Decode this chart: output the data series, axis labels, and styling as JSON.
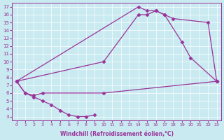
{
  "xlabel": "Windchill (Refroidissement éolien,°C)",
  "bg_color": "#c8eaf0",
  "line_color": "#993399",
  "marker": "D",
  "marker_size": 2.5,
  "xlim": [
    -0.5,
    23.5
  ],
  "ylim": [
    2.5,
    17.5
  ],
  "xticks": [
    0,
    1,
    2,
    3,
    4,
    5,
    6,
    7,
    8,
    9,
    10,
    11,
    12,
    13,
    14,
    15,
    16,
    17,
    18,
    19,
    20,
    21,
    22,
    23
  ],
  "yticks": [
    3,
    4,
    5,
    6,
    7,
    8,
    9,
    10,
    11,
    12,
    13,
    14,
    15,
    16,
    17
  ],
  "lines": [
    {
      "x": [
        0,
        14,
        15,
        16,
        17,
        18,
        22,
        23
      ],
      "y": [
        7.5,
        17.0,
        16.5,
        16.5,
        16.0,
        15.5,
        15.0,
        7.5
      ]
    },
    {
      "x": [
        0,
        10,
        14,
        15,
        16,
        17,
        19,
        20,
        23
      ],
      "y": [
        7.5,
        10.0,
        16.0,
        16.0,
        16.5,
        16.0,
        12.5,
        10.5,
        7.5
      ]
    },
    {
      "x": [
        0,
        1,
        2,
        3,
        10,
        23
      ],
      "y": [
        7.5,
        6.0,
        5.7,
        6.0,
        6.0,
        7.5
      ]
    },
    {
      "x": [
        0,
        1,
        2,
        3,
        4,
        5,
        6,
        7,
        8,
        9
      ],
      "y": [
        7.5,
        6.0,
        5.5,
        5.0,
        4.5,
        3.8,
        3.2,
        3.0,
        3.0,
        3.2
      ]
    }
  ]
}
